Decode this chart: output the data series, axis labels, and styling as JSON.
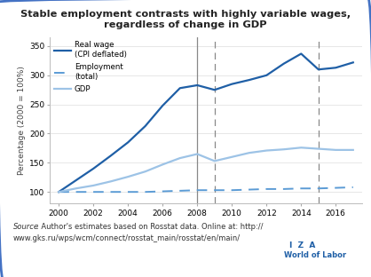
{
  "title_line1": "Stable employment contrasts with highly variable wages,",
  "title_line2": "regardless of change in GDP",
  "ylabel": "Percentage (2000 = 100%)",
  "source_italic": "Source",
  "source_rest": ": Author's estimates based on Rosstat data. Online at: http://\nwww.gks.ru/wps/wcm/connect/rosstat_main/rosstat/en/main/",
  "iza_line1": "I  Z  A",
  "iza_line2": "World of Labor",
  "years": [
    2000,
    2001,
    2002,
    2003,
    2004,
    2005,
    2006,
    2007,
    2008,
    2009,
    2010,
    2011,
    2012,
    2013,
    2014,
    2015,
    2016,
    2017
  ],
  "real_wage": [
    100,
    120,
    140,
    162,
    185,
    213,
    248,
    278,
    283,
    275,
    285,
    292,
    300,
    320,
    337,
    310,
    313,
    322
  ],
  "employment": [
    100,
    100,
    100,
    100,
    100,
    100,
    101,
    102,
    103,
    103,
    103,
    104,
    105,
    105,
    106,
    106,
    107,
    108
  ],
  "gdp": [
    100,
    106,
    111,
    118,
    126,
    135,
    147,
    158,
    165,
    153,
    160,
    167,
    171,
    173,
    176,
    174,
    172,
    172
  ],
  "vline_solid_x": 2008,
  "vline_dashed_x1": 2009,
  "vline_dashed_x2": 2015,
  "real_wage_color": "#1f5fa6",
  "employment_color": "#5b9bd5",
  "gdp_color": "#9dc3e6",
  "vline_color": "#888888",
  "bg_color": "#ffffff",
  "border_color": "#4472c4",
  "ylim": [
    80,
    365
  ],
  "yticks": [
    100,
    150,
    200,
    250,
    300,
    350
  ],
  "xlim": [
    1999.5,
    2017.5
  ],
  "xticks": [
    2000,
    2002,
    2004,
    2006,
    2008,
    2010,
    2012,
    2014,
    2016
  ]
}
